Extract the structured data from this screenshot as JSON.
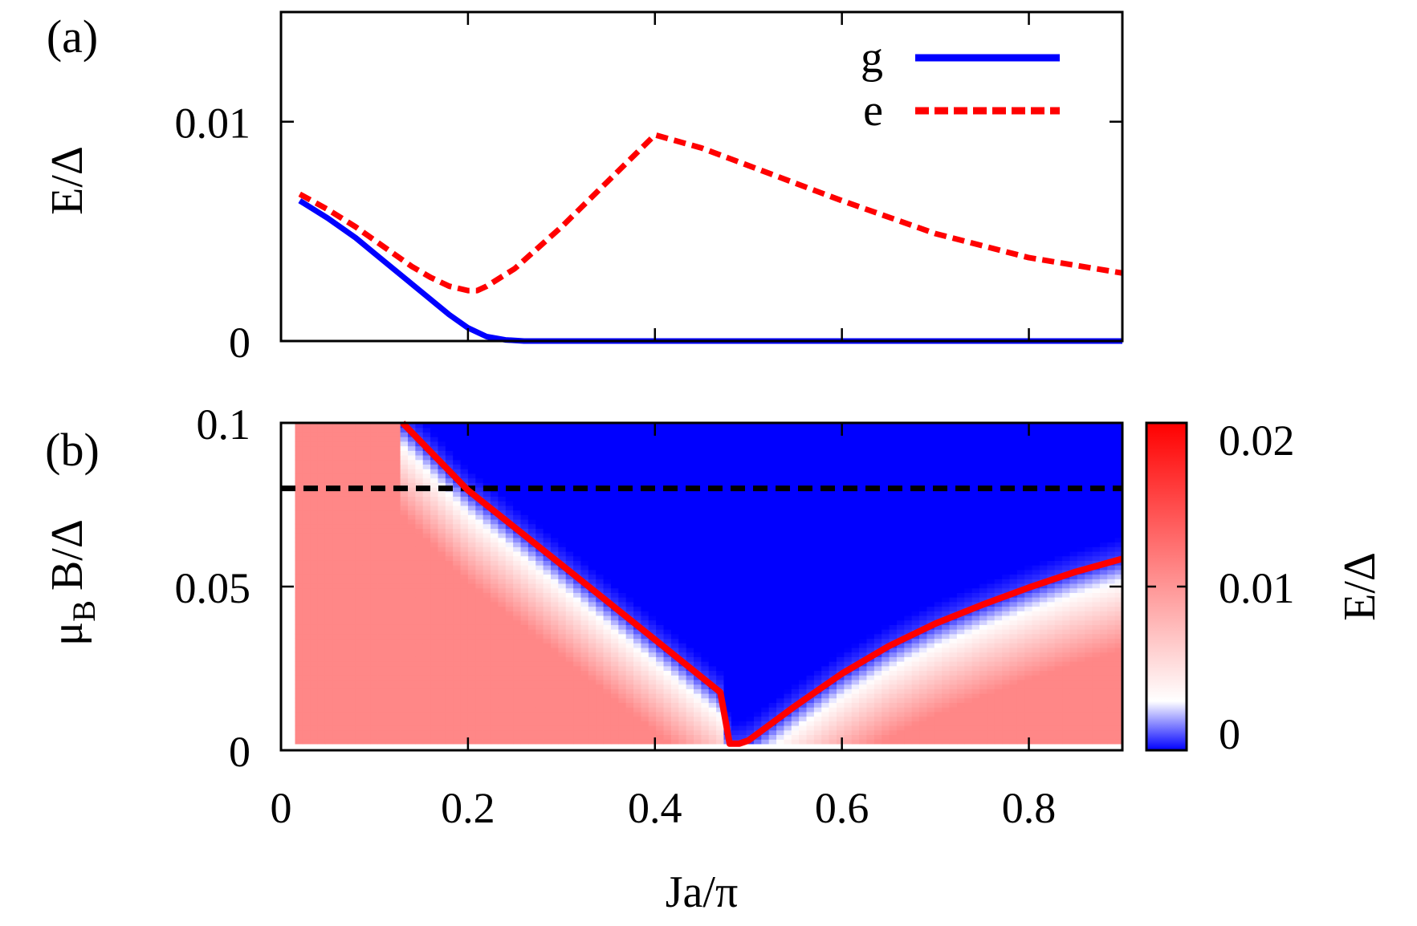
{
  "chart_data": [
    {
      "panel": "(a)",
      "type": "line",
      "xlim": [
        0,
        0.9
      ],
      "ylim": [
        0,
        0.015
      ],
      "ylabel": "E/Δ",
      "xlabel": "",
      "x_ticks": [
        0,
        0.2,
        0.4,
        0.6,
        0.8
      ],
      "y_ticks": [
        0,
        0.01
      ],
      "y_tick_labels": [
        "0",
        "0.01"
      ],
      "legend_position": "top-right",
      "series": [
        {
          "name": "g",
          "style": "solid",
          "color": "#0000ff",
          "x": [
            0.02,
            0.05,
            0.08,
            0.1,
            0.12,
            0.14,
            0.16,
            0.18,
            0.2,
            0.22,
            0.24,
            0.26,
            0.3,
            0.4,
            0.5,
            0.6,
            0.7,
            0.8,
            0.9
          ],
          "y": [
            0.0064,
            0.0056,
            0.0047,
            0.004,
            0.0033,
            0.0026,
            0.0019,
            0.0012,
            0.0006,
            0.0002,
            5e-05,
            0,
            0,
            0,
            0,
            0,
            0,
            0,
            0
          ]
        },
        {
          "name": "e",
          "style": "dashed",
          "color": "#ff0000",
          "x": [
            0.02,
            0.05,
            0.08,
            0.1,
            0.12,
            0.14,
            0.16,
            0.18,
            0.2,
            0.21,
            0.22,
            0.25,
            0.3,
            0.35,
            0.4,
            0.45,
            0.5,
            0.6,
            0.7,
            0.8,
            0.9
          ],
          "y": [
            0.0067,
            0.006,
            0.0052,
            0.0046,
            0.004,
            0.0034,
            0.0029,
            0.0025,
            0.0023,
            0.0023,
            0.0025,
            0.0033,
            0.0052,
            0.0073,
            0.0094,
            0.0088,
            0.008,
            0.0064,
            0.0049,
            0.0038,
            0.0031
          ]
        }
      ]
    },
    {
      "panel": "(b)",
      "type": "heatmap",
      "xlim": [
        0,
        0.9
      ],
      "ylim": [
        0,
        0.1
      ],
      "xlabel": "Ja/π",
      "ylabel_main": "μ",
      "ylabel_sub": "B",
      "ylabel_rest": "B/Δ",
      "x_ticks": [
        0,
        0.2,
        0.4,
        0.6,
        0.8
      ],
      "x_tick_labels": [
        "0",
        "0.2",
        "0.4",
        "0.6",
        "0.8"
      ],
      "y_ticks": [
        0,
        0.05,
        0.1
      ],
      "y_tick_labels": [
        "0",
        "0.05",
        "0.1"
      ],
      "colorbar": {
        "label": "E/Δ",
        "range": [
          0,
          0.02
        ],
        "ticks": [
          0,
          0.01,
          0.02
        ],
        "tick_labels": [
          "0",
          "0.01",
          "0.02"
        ],
        "colors": {
          "low": "#0000ff",
          "mid": "#ffffff",
          "high": "#ff0000"
        }
      },
      "dashed_line": {
        "y": 0.08,
        "color": "#000000"
      },
      "boundary_line": {
        "color": "#ff0000",
        "x": [
          0.13,
          0.2,
          0.3,
          0.4,
          0.47,
          0.48,
          0.49,
          0.5,
          0.55,
          0.6,
          0.65,
          0.7,
          0.75,
          0.8,
          0.85,
          0.9
        ],
        "y": [
          0.1,
          0.0794,
          0.0567,
          0.0338,
          0.0177,
          0.002,
          0.002,
          0.003,
          0.0135,
          0.0234,
          0.0318,
          0.0387,
          0.0444,
          0.0497,
          0.0545,
          0.0585
        ]
      }
    }
  ]
}
